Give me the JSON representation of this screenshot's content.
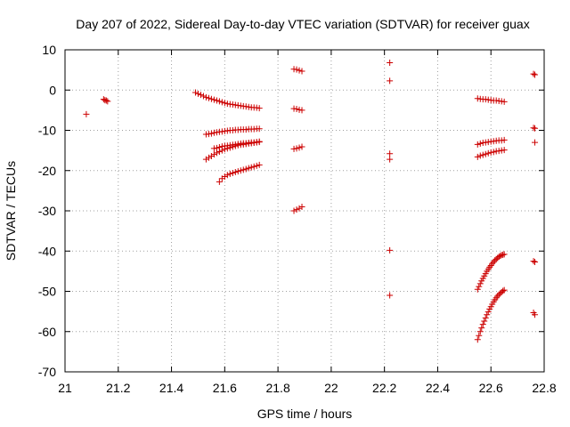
{
  "chart_data": {
    "type": "scatter",
    "title": "Day 207 of 2022, Sidereal Day-to-day VTEC variation (SDTVAR) for receiver guax",
    "xlabel": "GPS time / hours",
    "ylabel": "SDTVAR / TECUs",
    "xlim": [
      21,
      22.8
    ],
    "ylim": [
      -70,
      10
    ],
    "xticks": [
      21,
      21.2,
      21.4,
      21.6,
      21.8,
      22,
      22.2,
      22.4,
      22.6,
      22.8
    ],
    "xtick_labels": [
      "21",
      "21.2",
      "21.4",
      "21.6",
      "21.8",
      "22",
      "22.2",
      "22.4",
      "22.6",
      "22.8"
    ],
    "yticks": [
      10,
      0,
      -10,
      -20,
      -30,
      -40,
      -50,
      -60,
      -70
    ],
    "ytick_labels": [
      "10",
      "0",
      "-10",
      "-20",
      "-30",
      "-40",
      "-50",
      "-60",
      "-70"
    ],
    "grid": true,
    "marker": "+",
    "color": "#cc0000",
    "series": [
      {
        "name": "s1",
        "x": [
          21.08
        ],
        "y": [
          -6
        ]
      },
      {
        "name": "s2",
        "x": [
          21.145,
          21.15,
          21.155,
          21.16
        ],
        "y": [
          -2.3,
          -2.5,
          -2.6,
          -2.8
        ]
      },
      {
        "name": "s3",
        "x": [
          21.49,
          21.5,
          21.51,
          21.52,
          21.53,
          21.54,
          21.55,
          21.56,
          21.57,
          21.58,
          21.59,
          21.6,
          21.61,
          21.62,
          21.63,
          21.64,
          21.65,
          21.66,
          21.67,
          21.68,
          21.69,
          21.7,
          21.71,
          21.72,
          21.73
        ],
        "y": [
          -0.6,
          -0.9,
          -1.2,
          -1.5,
          -1.8,
          -2.0,
          -2.2,
          -2.4,
          -2.6,
          -2.8,
          -3.0,
          -3.2,
          -3.4,
          -3.5,
          -3.6,
          -3.7,
          -3.8,
          -3.9,
          -4.0,
          -4.1,
          -4.2,
          -4.3,
          -4.35,
          -4.4,
          -4.5
        ]
      },
      {
        "name": "s4",
        "x": [
          21.53,
          21.54,
          21.55,
          21.56,
          21.57,
          21.58,
          21.59,
          21.6,
          21.61,
          21.62,
          21.63,
          21.64,
          21.65,
          21.66,
          21.67,
          21.68,
          21.69,
          21.7,
          21.71,
          21.72,
          21.73
        ],
        "y": [
          -11.0,
          -10.9,
          -10.8,
          -10.6,
          -10.5,
          -10.4,
          -10.3,
          -10.2,
          -10.1,
          -10.0,
          -10.0,
          -9.9,
          -9.9,
          -9.8,
          -9.8,
          -9.8,
          -9.7,
          -9.7,
          -9.7,
          -9.6,
          -9.6
        ]
      },
      {
        "name": "s5",
        "x": [
          21.56,
          21.57,
          21.58,
          21.59,
          21.6,
          21.61,
          21.62,
          21.63,
          21.64,
          21.65,
          21.66,
          21.67,
          21.68,
          21.69,
          21.7,
          21.71,
          21.72,
          21.73
        ],
        "y": [
          -14.5,
          -14.4,
          -14.2,
          -14.0,
          -13.9,
          -13.8,
          -13.7,
          -13.6,
          -13.5,
          -13.4,
          -13.3,
          -13.2,
          -13.2,
          -13.1,
          -13.0,
          -13.0,
          -12.9,
          -12.8
        ]
      },
      {
        "name": "s6",
        "x": [
          21.53,
          21.54,
          21.55,
          21.56,
          21.57,
          21.58,
          21.59,
          21.6,
          21.61,
          21.62,
          21.63,
          21.64,
          21.65,
          21.66,
          21.67,
          21.68,
          21.69,
          21.7,
          21.71,
          21.72,
          21.73
        ],
        "y": [
          -17.2,
          -16.8,
          -16.4,
          -16.0,
          -15.6,
          -15.3,
          -15.0,
          -14.7,
          -14.5,
          -14.3,
          -14.1,
          -13.9,
          -13.7,
          -13.6,
          -13.5,
          -13.4,
          -13.3,
          -13.2,
          -13.1,
          -13.0,
          -12.9
        ]
      },
      {
        "name": "s7",
        "x": [
          21.58,
          21.59,
          21.6,
          21.61,
          21.62,
          21.63,
          21.64,
          21.65,
          21.66,
          21.67,
          21.68,
          21.69,
          21.7,
          21.71,
          21.72,
          21.73
        ],
        "y": [
          -22.8,
          -22.0,
          -21.5,
          -21.1,
          -20.8,
          -20.6,
          -20.4,
          -20.2,
          -20.0,
          -19.8,
          -19.6,
          -19.4,
          -19.2,
          -19.0,
          -18.8,
          -18.6
        ]
      },
      {
        "name": "s8",
        "x": [
          21.86,
          21.87,
          21.88,
          21.89
        ],
        "y": [
          5.2,
          5.1,
          4.9,
          4.7
        ]
      },
      {
        "name": "s9",
        "x": [
          21.86,
          21.87,
          21.88,
          21.89
        ],
        "y": [
          -4.6,
          -4.7,
          -4.9,
          -5.0
        ]
      },
      {
        "name": "s10",
        "x": [
          21.86,
          21.87,
          21.88,
          21.89
        ],
        "y": [
          -14.6,
          -14.5,
          -14.3,
          -14.1
        ]
      },
      {
        "name": "s11",
        "x": [
          21.86,
          21.87,
          21.88,
          21.89
        ],
        "y": [
          -30.0,
          -29.7,
          -29.4,
          -29.0
        ]
      },
      {
        "name": "s12",
        "x": [
          22.22,
          22.22
        ],
        "y": [
          6.8,
          2.3
        ]
      },
      {
        "name": "s13",
        "x": [
          22.22,
          22.22
        ],
        "y": [
          -15.8,
          -17.2
        ]
      },
      {
        "name": "s14",
        "x": [
          22.22
        ],
        "y": [
          -39.8
        ]
      },
      {
        "name": "s15",
        "x": [
          22.22
        ],
        "y": [
          -51.0
        ]
      },
      {
        "name": "s16",
        "x": [
          22.55,
          22.56,
          22.57,
          22.58,
          22.59,
          22.6,
          22.61,
          22.62,
          22.63,
          22.64,
          22.65
        ],
        "y": [
          -2.1,
          -2.2,
          -2.3,
          -2.3,
          -2.4,
          -2.5,
          -2.6,
          -2.6,
          -2.7,
          -2.8,
          -2.9
        ]
      },
      {
        "name": "s17",
        "x": [
          22.55,
          22.56,
          22.57,
          22.58,
          22.59,
          22.6,
          22.61,
          22.62,
          22.63,
          22.64,
          22.65
        ],
        "y": [
          -13.5,
          -13.3,
          -13.1,
          -13.0,
          -12.9,
          -12.8,
          -12.7,
          -12.6,
          -12.5,
          -12.5,
          -12.4
        ]
      },
      {
        "name": "s18",
        "x": [
          22.55,
          22.56,
          22.57,
          22.58,
          22.59,
          22.6,
          22.61,
          22.62,
          22.63,
          22.64,
          22.65
        ],
        "y": [
          -16.6,
          -16.3,
          -16.1,
          -15.9,
          -15.7,
          -15.5,
          -15.4,
          -15.2,
          -15.1,
          -15.0,
          -14.9
        ]
      },
      {
        "name": "s19",
        "x": [
          22.55,
          22.555,
          22.56,
          22.565,
          22.57,
          22.575,
          22.58,
          22.585,
          22.59,
          22.595,
          22.6,
          22.605,
          22.61,
          22.615,
          22.62,
          22.625,
          22.63,
          22.635,
          22.64,
          22.645,
          22.65
        ],
        "y": [
          -49.5,
          -48.8,
          -48.1,
          -47.4,
          -46.8,
          -46.2,
          -45.6,
          -45.0,
          -44.5,
          -44.0,
          -43.6,
          -43.1,
          -42.7,
          -42.3,
          -42.0,
          -41.7,
          -41.4,
          -41.2,
          -41.0,
          -40.9,
          -40.8
        ]
      },
      {
        "name": "s20",
        "x": [
          22.55,
          22.555,
          22.56,
          22.565,
          22.57,
          22.575,
          22.58,
          22.585,
          22.59,
          22.595,
          22.6,
          22.605,
          22.61,
          22.615,
          22.62,
          22.625,
          22.63,
          22.635,
          22.64,
          22.645,
          22.65
        ],
        "y": [
          -62.0,
          -61.0,
          -60.0,
          -59.1,
          -58.2,
          -57.4,
          -56.6,
          -55.8,
          -55.1,
          -54.4,
          -53.8,
          -53.2,
          -52.6,
          -52.1,
          -51.6,
          -51.2,
          -50.8,
          -50.5,
          -50.2,
          -49.9,
          -49.7
        ]
      },
      {
        "name": "s21",
        "x": [
          22.76,
          22.765
        ],
        "y": [
          4.0,
          3.8
        ]
      },
      {
        "name": "s22",
        "x": [
          22.76,
          22.765
        ],
        "y": [
          -9.4,
          -9.5
        ]
      },
      {
        "name": "s23",
        "x": [
          22.765
        ],
        "y": [
          -13.0
        ]
      },
      {
        "name": "s24",
        "x": [
          22.76,
          22.765
        ],
        "y": [
          -42.5,
          -42.7
        ]
      },
      {
        "name": "s25",
        "x": [
          22.76,
          22.765
        ],
        "y": [
          -55.3,
          -55.8
        ]
      }
    ]
  }
}
